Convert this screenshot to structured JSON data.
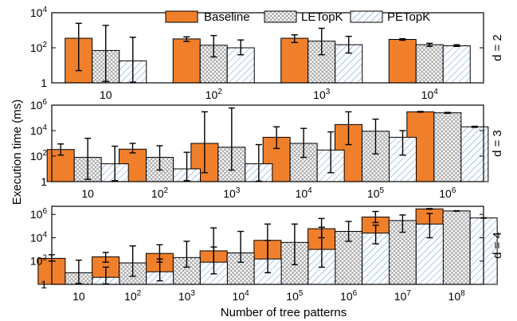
{
  "colors": {
    "baseline": "#f07f2b",
    "letopk_fill": "#ffffff",
    "letopk_hatch": "#9a9a9a",
    "petopk_fill": "#ffffff",
    "petopk_hatch": "#5b8fd6",
    "frame": "#000000"
  },
  "legend": {
    "placement": "top-center (inside top panel)",
    "entries": [
      "Baseline",
      "LETopK",
      "PETopK"
    ]
  },
  "axes": {
    "ylabel": "Execution time (ms)",
    "xlabel": "Number of tree patterns",
    "scale": "log10"
  },
  "chart_data": {
    "type": "bar",
    "title": "",
    "xlabel": "Number of tree patterns",
    "ylabel": "Execution time (ms)",
    "yscale": "log",
    "error_bars": true,
    "panels": [
      {
        "label": "d = 2",
        "ylim": [
          1,
          10000
        ],
        "yticks": [
          {
            "v": 1,
            "base": "1",
            "exp": ""
          },
          {
            "v": 100,
            "base": "10",
            "exp": "2"
          },
          {
            "v": 10000,
            "base": "10",
            "exp": "4"
          }
        ],
        "categories": [
          {
            "base": "10",
            "exp": ""
          },
          {
            "base": "10",
            "exp": "2"
          },
          {
            "base": "10",
            "exp": "3"
          },
          {
            "base": "10",
            "exp": "4"
          }
        ],
        "series": [
          {
            "name": "Baseline",
            "values": [
              350,
              320,
              350,
              300
            ],
            "err_low": [
              5,
              230,
              200,
              270
            ],
            "err_high": [
              2500,
              420,
              550,
              330
            ]
          },
          {
            "name": "LETopK",
            "values": [
              70,
              140,
              240,
              150
            ],
            "err_low": [
              1.2,
              30,
              40,
              120
            ],
            "err_high": [
              1900,
              500,
              1300,
              180
            ]
          },
          {
            "name": "PETopK",
            "values": [
              18,
              100,
              150,
              130
            ],
            "err_low": [
              1.1,
              40,
              50,
              120
            ],
            "err_high": [
              400,
              280,
              450,
              150
            ]
          }
        ]
      },
      {
        "label": "d = 3",
        "ylim": [
          1,
          1000000
        ],
        "yticks": [
          {
            "v": 1,
            "base": "1",
            "exp": ""
          },
          {
            "v": 100,
            "base": "10",
            "exp": "2"
          },
          {
            "v": 10000,
            "base": "10",
            "exp": "4"
          },
          {
            "v": 1000000,
            "base": "10",
            "exp": "6"
          }
        ],
        "categories": [
          {
            "base": "10",
            "exp": ""
          },
          {
            "base": "10",
            "exp": "2"
          },
          {
            "base": "10",
            "exp": "3"
          },
          {
            "base": "10",
            "exp": "4"
          },
          {
            "base": "10",
            "exp": "5"
          },
          {
            "base": "10",
            "exp": "6"
          }
        ],
        "series": [
          {
            "name": "Baseline",
            "values": [
              330,
              350,
              1000,
              3000,
              30000,
              300000
            ],
            "err_low": [
              120,
              180,
              5,
              400,
              800,
              280000
            ],
            "err_high": [
              900,
              1000,
              300000,
              20000,
              300000,
              320000
            ]
          },
          {
            "name": "LETopK",
            "values": [
              80,
              80,
              500,
              1000,
              9000,
              250000
            ],
            "err_low": [
              1.5,
              8,
              8,
              80,
              150,
              230000
            ],
            "err_high": [
              2500,
              650,
              600000,
              15000,
              80000,
              270000
            ]
          },
          {
            "name": "PETopK",
            "values": [
              25,
              10,
              25,
              300,
              3000,
              20000
            ],
            "err_low": [
              1.2,
              1.2,
              1.1,
              5,
              120,
              18000
            ],
            "err_high": [
              600,
              200,
              800,
              8000,
              10000,
              22000
            ]
          }
        ]
      },
      {
        "label": "d = 4",
        "ylim": [
          1,
          5000000
        ],
        "yticks": [
          {
            "v": 1,
            "base": "1",
            "exp": ""
          },
          {
            "v": 100,
            "base": "10",
            "exp": "2"
          },
          {
            "v": 10000,
            "base": "10",
            "exp": "4"
          },
          {
            "v": 1000000,
            "base": "10",
            "exp": "6"
          }
        ],
        "categories": [
          {
            "base": "10",
            "exp": ""
          },
          {
            "base": "10",
            "exp": "2"
          },
          {
            "base": "10",
            "exp": "3"
          },
          {
            "base": "10",
            "exp": "4"
          },
          {
            "base": "10",
            "exp": "5"
          },
          {
            "base": "10",
            "exp": "6"
          },
          {
            "base": "10",
            "exp": "7"
          },
          {
            "base": "10",
            "exp": "8"
          }
        ],
        "series": [
          {
            "name": "Baseline",
            "values": [
              170,
              230,
              450,
              750,
              6000,
              60000,
              600000,
              3000000
            ],
            "err_low": [
              100,
              80,
              80,
              15,
              25,
              10000,
              200000,
              2800000
            ],
            "err_high": [
              350,
              550,
              2500,
              70000,
              150000,
              450000,
              1800000,
              3200000
            ]
          },
          {
            "name": "LETopK",
            "values": [
              10,
              70,
              200,
              500,
              4000,
              35000,
              300000,
              2000000
            ],
            "err_low": [
              1.2,
              5,
              30,
              80,
              50,
              5000,
              30000,
              1900000
            ],
            "err_high": [
              120,
              2000,
              5000,
              35000,
              150000,
              250000,
              900000,
              2100000
            ]
          },
          {
            "name": "PETopK",
            "values": [
              4,
              12,
              80,
              150,
              1000,
              25000,
              150000,
              500000
            ],
            "err_low": [
              1.1,
              2,
              8,
              10,
              30,
              3000,
              10000,
              480000
            ],
            "err_high": [
              30,
              150,
              1600,
              6000,
              80000,
              120000,
              1200000,
              520000
            ]
          }
        ]
      }
    ]
  }
}
